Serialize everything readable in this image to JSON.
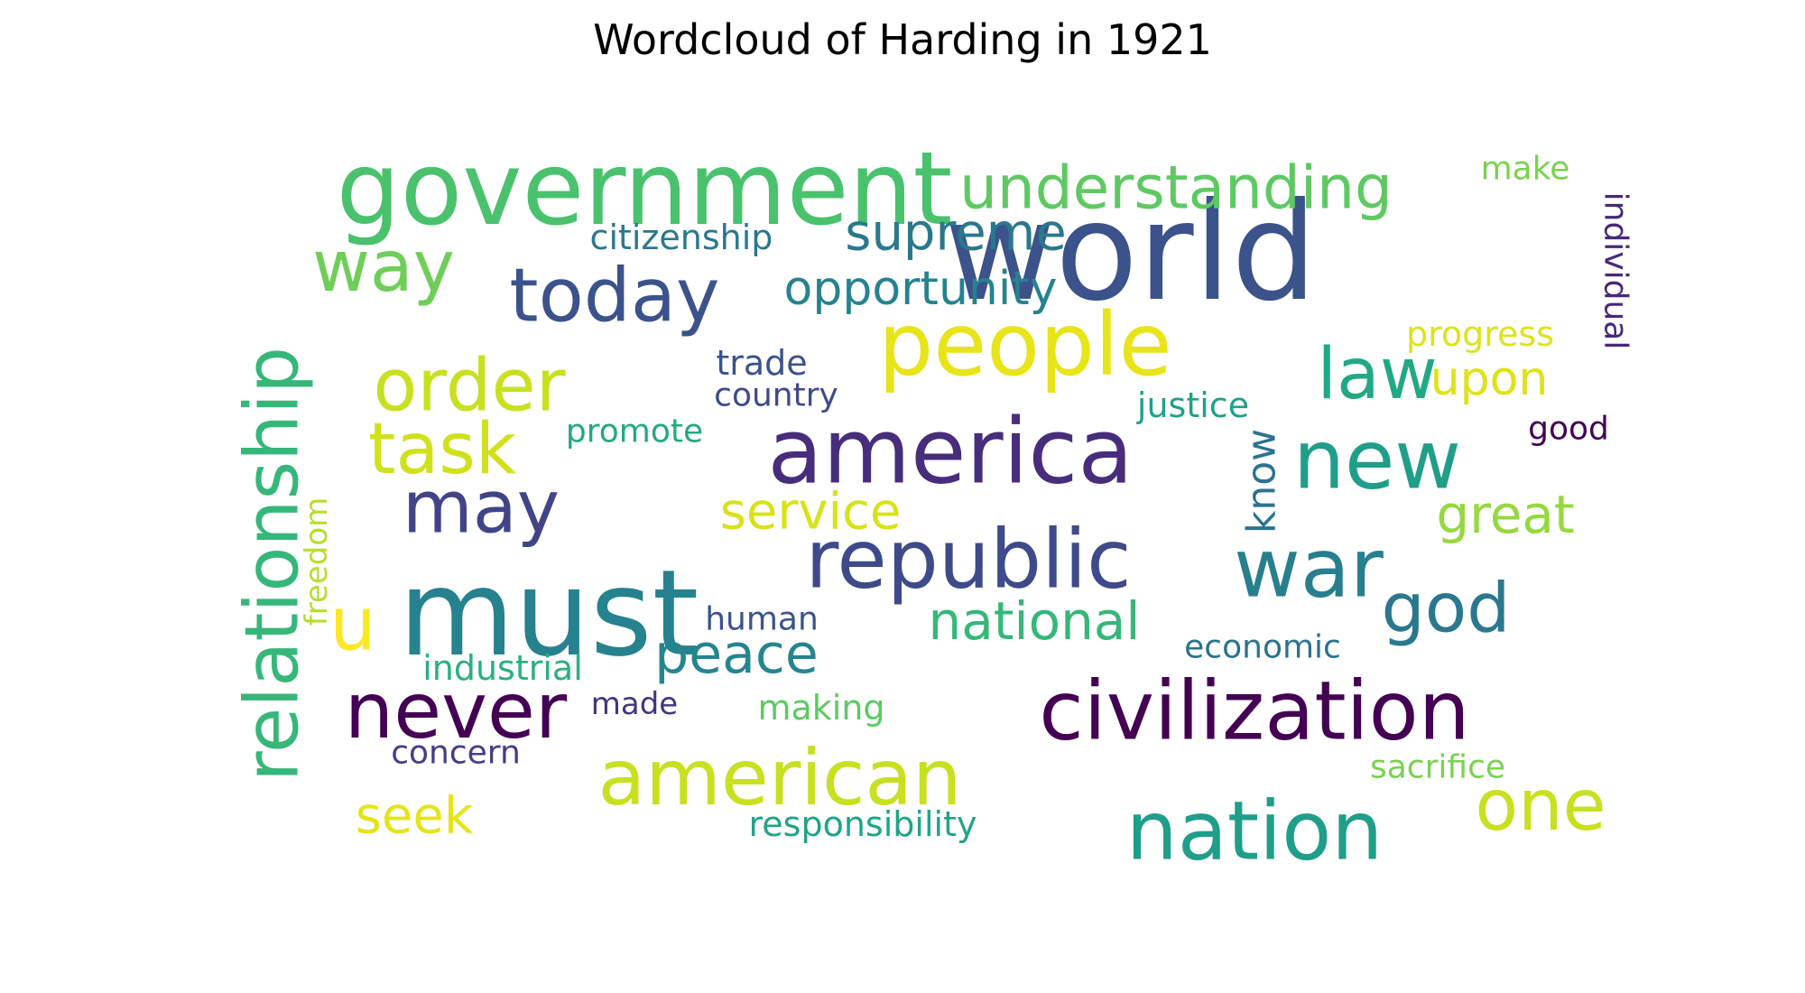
{
  "chart_data": {
    "type": "wordcloud",
    "title": "Wordcloud of Harding in 1921",
    "words": [
      {
        "text": "world",
        "color": "#3b528b"
      },
      {
        "text": "government",
        "color": "#4ac16d"
      },
      {
        "text": "must",
        "color": "#26828e"
      },
      {
        "text": "america",
        "color": "#472d7b"
      },
      {
        "text": "civilization",
        "color": "#440154"
      },
      {
        "text": "people",
        "color": "#e7e419"
      },
      {
        "text": "republic",
        "color": "#3e4a89"
      },
      {
        "text": "relationship",
        "color": "#35b779"
      },
      {
        "text": "nation",
        "color": "#1f9e89"
      },
      {
        "text": "american",
        "color": "#c8e020"
      },
      {
        "text": "war",
        "color": "#277f8e"
      },
      {
        "text": "never",
        "color": "#440154"
      },
      {
        "text": "new",
        "color": "#1f9e89"
      },
      {
        "text": "understanding",
        "color": "#5ec962"
      },
      {
        "text": "today",
        "color": "#3b528b"
      },
      {
        "text": "order",
        "color": "#c8e020"
      },
      {
        "text": "may",
        "color": "#414487"
      },
      {
        "text": "task",
        "color": "#d0e11c"
      },
      {
        "text": "way",
        "color": "#6ece58"
      },
      {
        "text": "law",
        "color": "#22a884"
      },
      {
        "text": "god",
        "color": "#2a788e"
      },
      {
        "text": "one",
        "color": "#c8e020"
      },
      {
        "text": "supreme",
        "color": "#2a788e"
      },
      {
        "text": "national",
        "color": "#35b779"
      },
      {
        "text": "u",
        "color": "#fde725"
      },
      {
        "text": "peace",
        "color": "#25858e"
      },
      {
        "text": "opportunity",
        "color": "#26828e"
      },
      {
        "text": "service",
        "color": "#d8e219"
      },
      {
        "text": "great",
        "color": "#95d840"
      },
      {
        "text": "upon",
        "color": "#dde318"
      },
      {
        "text": "seek",
        "color": "#e5e419"
      },
      {
        "text": "know",
        "color": "#2c728e"
      },
      {
        "text": "citizenship",
        "color": "#2a788e"
      },
      {
        "text": "individual",
        "color": "#482878"
      },
      {
        "text": "progress",
        "color": "#dde318"
      },
      {
        "text": "justice",
        "color": "#1fa188"
      },
      {
        "text": "trade",
        "color": "#3b528b"
      },
      {
        "text": "country",
        "color": "#3e4a89"
      },
      {
        "text": "promote",
        "color": "#22a884"
      },
      {
        "text": "industrial",
        "color": "#2ab07f"
      },
      {
        "text": "responsibility",
        "color": "#20a486"
      },
      {
        "text": "sacrifice",
        "color": "#7ad151"
      },
      {
        "text": "economic",
        "color": "#2c728e"
      },
      {
        "text": "human",
        "color": "#3b528b"
      },
      {
        "text": "concern",
        "color": "#433e85"
      },
      {
        "text": "made",
        "color": "#46337f"
      },
      {
        "text": "making",
        "color": "#5ec962"
      },
      {
        "text": "freedom",
        "color": "#b5de2b"
      },
      {
        "text": "make",
        "color": "#7ad151"
      },
      {
        "text": "good",
        "color": "#440154"
      }
    ]
  }
}
